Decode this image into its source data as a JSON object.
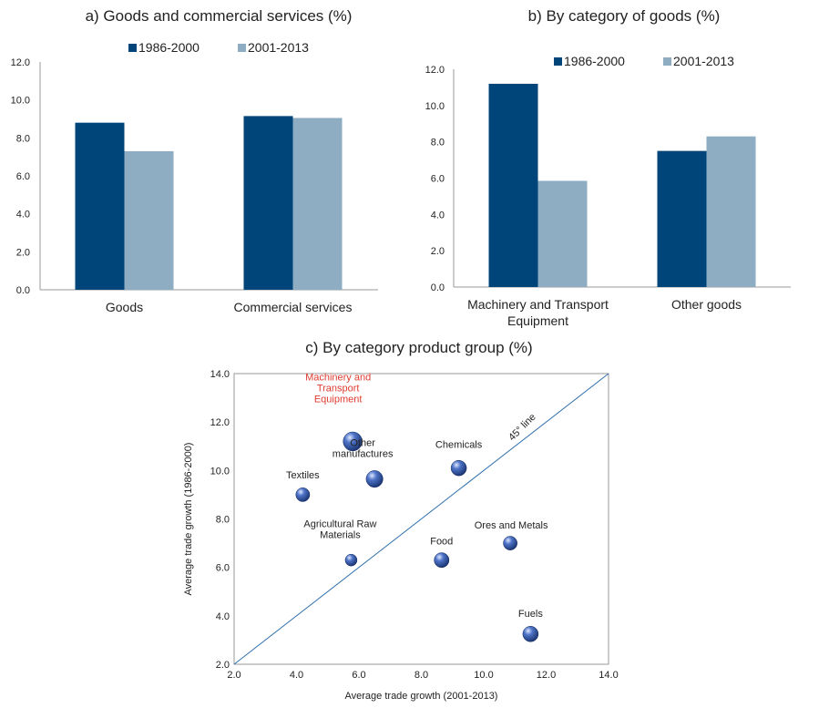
{
  "titles": {
    "a": "a) Goods and commercial services (%)",
    "b": "b) By category of goods (%)",
    "c": "c) By category product group (%)"
  },
  "colors": {
    "series1": "#00457a",
    "series2": "#8eacc2",
    "diagonal": "#2f6fad",
    "bubble": "#2a4f9e",
    "highlight": "#e03c31"
  },
  "chart_data": [
    {
      "type": "bar",
      "title": "a) Goods and commercial services (%)",
      "categories": [
        "Goods",
        "Commercial services"
      ],
      "series": [
        {
          "name": "1986-2000",
          "values": [
            8.8,
            9.15
          ]
        },
        {
          "name": "2001-2013",
          "values": [
            7.3,
            9.05
          ]
        }
      ],
      "ylim": [
        0,
        12
      ],
      "yticks": [
        "0.0",
        "2.0",
        "4.0",
        "6.0",
        "8.0",
        "10.0",
        "12.0"
      ],
      "legend": "top"
    },
    {
      "type": "bar",
      "title": "b) By category of goods (%)",
      "categories": [
        [
          "Machinery and Transport",
          "Equipment"
        ],
        [
          "Other goods"
        ]
      ],
      "series": [
        {
          "name": "1986-2000",
          "values": [
            11.2,
            7.5
          ]
        },
        {
          "name": "2001-2013",
          "values": [
            5.85,
            8.3
          ]
        }
      ],
      "ylim": [
        0,
        12
      ],
      "yticks": [
        "0.0",
        "2.0",
        "4.0",
        "6.0",
        "8.0",
        "10.0",
        "12.0"
      ],
      "legend": "top"
    },
    {
      "type": "scatter",
      "title": "c) By category product group (%)",
      "xlabel": "Average trade growth (2001-2013)",
      "ylabel": "Average trade growth (1986-2000)",
      "xlim": [
        2,
        14
      ],
      "ylim": [
        2,
        14
      ],
      "xticks": [
        "2.0",
        "4.0",
        "6.0",
        "8.0",
        "10.0",
        "12.0",
        "14.0"
      ],
      "yticks": [
        "2.0",
        "4.0",
        "6.0",
        "8.0",
        "10.0",
        "12.0",
        "14.0"
      ],
      "diagonal_label": "45° line",
      "points": [
        {
          "label": [
            "Machinery and",
            "Transport",
            "Equipment"
          ],
          "x": 5.8,
          "y": 11.2,
          "size": 3,
          "highlight": true
        },
        {
          "label": [
            "Other",
            "manufactures"
          ],
          "x": 6.5,
          "y": 9.65,
          "size": 2
        },
        {
          "label": [
            "Chemicals"
          ],
          "x": 9.2,
          "y": 10.1,
          "size": 1.5
        },
        {
          "label": [
            "Textiles"
          ],
          "x": 4.2,
          "y": 9.0,
          "size": 1
        },
        {
          "label": [
            "Agricultural Raw",
            "Materials"
          ],
          "x": 5.75,
          "y": 6.3,
          "size": 0.5
        },
        {
          "label": [
            "Food"
          ],
          "x": 8.65,
          "y": 6.3,
          "size": 1.3
        },
        {
          "label": [
            "Ores and Metals"
          ],
          "x": 10.85,
          "y": 7.0,
          "size": 1
        },
        {
          "label": [
            "Fuels"
          ],
          "x": 11.5,
          "y": 3.25,
          "size": 1.5
        }
      ]
    }
  ]
}
